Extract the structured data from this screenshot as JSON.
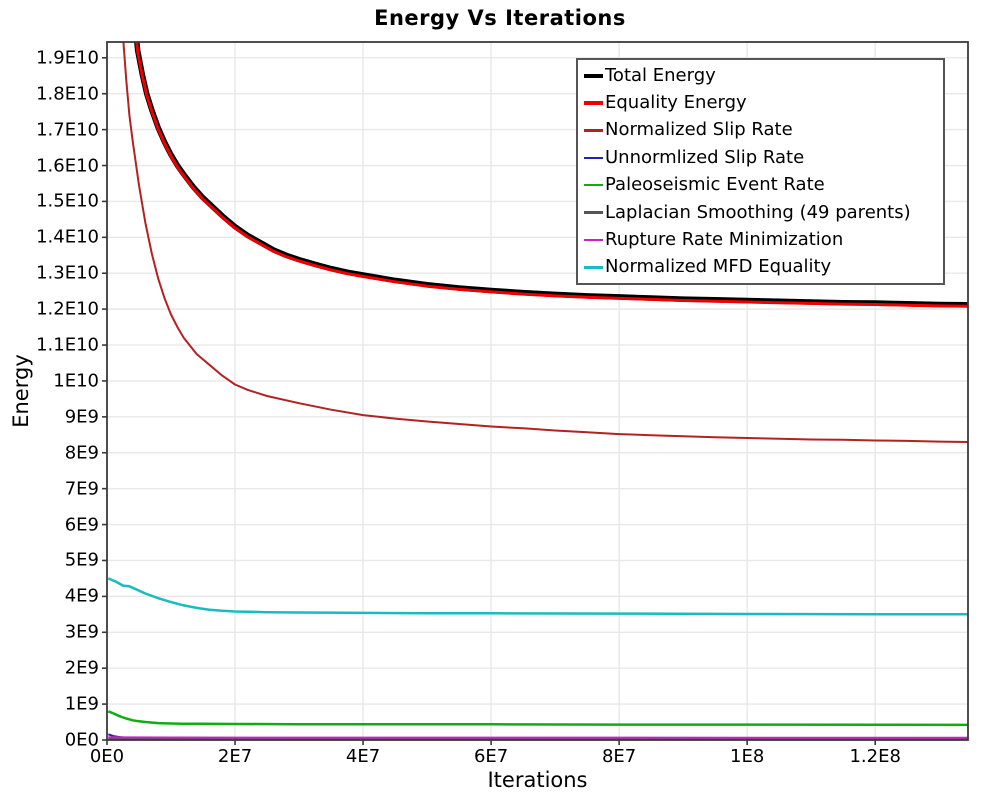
{
  "title": "Energy Vs Iterations",
  "colors": {
    "background": "#ffffff",
    "grid": "#e8e8e8",
    "plot_border": "#3a3a3a",
    "legend_border": "#555555",
    "text": "#000000"
  },
  "chart_data": {
    "type": "line",
    "title": "Energy Vs Iterations",
    "xlabel": "Iterations",
    "ylabel": "Energy",
    "xlim": [
      0,
      134500000
    ],
    "ylim": [
      0,
      19440000000
    ],
    "grid": true,
    "legend_position": "upper-right-inside",
    "x_unit": 10000000,
    "y_unit": 1000000000,
    "x_ticks": [
      {
        "value": 0,
        "label": "0E0"
      },
      {
        "value": 20000000,
        "label": "2E7"
      },
      {
        "value": 40000000,
        "label": "4E7"
      },
      {
        "value": 60000000,
        "label": "6E7"
      },
      {
        "value": 80000000,
        "label": "8E7"
      },
      {
        "value": 100000000,
        "label": "1E8"
      },
      {
        "value": 120000000,
        "label": "1.2E8"
      }
    ],
    "y_ticks": [
      {
        "value": 0,
        "label": "0E0"
      },
      {
        "value": 1000000000,
        "label": "1E9"
      },
      {
        "value": 2000000000,
        "label": "2E9"
      },
      {
        "value": 3000000000,
        "label": "3E9"
      },
      {
        "value": 4000000000,
        "label": "4E9"
      },
      {
        "value": 5000000000,
        "label": "5E9"
      },
      {
        "value": 6000000000,
        "label": "6E9"
      },
      {
        "value": 7000000000,
        "label": "7E9"
      },
      {
        "value": 8000000000,
        "label": "8E9"
      },
      {
        "value": 9000000000,
        "label": "9E9"
      },
      {
        "value": 10000000000,
        "label": "1E10"
      },
      {
        "value": 11000000000,
        "label": "1.1E10"
      },
      {
        "value": 12000000000,
        "label": "1.2E10"
      },
      {
        "value": 13000000000,
        "label": "1.3E10"
      },
      {
        "value": 14000000000,
        "label": "1.4E10"
      },
      {
        "value": 15000000000,
        "label": "1.5E10"
      },
      {
        "value": 16000000000,
        "label": "1.6E10"
      },
      {
        "value": 17000000000,
        "label": "1.7E10"
      },
      {
        "value": 18000000000,
        "label": "1.8E10"
      },
      {
        "value": 19000000000,
        "label": "1.9E10"
      }
    ],
    "series": [
      {
        "name": "Total Energy",
        "color": "#000000",
        "width": 5.5,
        "legend_thick": true,
        "points": [
          [
            0.4,
            21.8
          ],
          [
            0.44,
            19.9
          ],
          [
            0.48,
            19.2
          ],
          [
            0.55,
            18.55
          ],
          [
            0.62,
            18.0
          ],
          [
            0.7,
            17.55
          ],
          [
            0.8,
            17.05
          ],
          [
            0.9,
            16.65
          ],
          [
            1.0,
            16.3
          ],
          [
            1.1,
            16.0
          ],
          [
            1.2,
            15.75
          ],
          [
            1.35,
            15.4
          ],
          [
            1.5,
            15.1
          ],
          [
            1.65,
            14.85
          ],
          [
            1.8,
            14.6
          ],
          [
            2.0,
            14.3
          ],
          [
            2.2,
            14.05
          ],
          [
            2.4,
            13.85
          ],
          [
            2.6,
            13.65
          ],
          [
            2.8,
            13.5
          ],
          [
            3.0,
            13.38
          ],
          [
            3.25,
            13.25
          ],
          [
            3.5,
            13.13
          ],
          [
            3.75,
            13.03
          ],
          [
            4.0,
            12.95
          ],
          [
            4.5,
            12.8
          ],
          [
            5.0,
            12.68
          ],
          [
            5.5,
            12.59
          ],
          [
            6.0,
            12.52
          ],
          [
            6.5,
            12.46
          ],
          [
            7.0,
            12.41
          ],
          [
            7.5,
            12.37
          ],
          [
            8.0,
            12.34
          ],
          [
            8.5,
            12.31
          ],
          [
            9.0,
            12.28
          ],
          [
            9.5,
            12.26
          ],
          [
            10.0,
            12.24
          ],
          [
            10.5,
            12.22
          ],
          [
            11.0,
            12.2
          ],
          [
            11.5,
            12.18
          ],
          [
            12.0,
            12.17
          ],
          [
            12.5,
            12.15
          ],
          [
            13.0,
            12.13
          ],
          [
            13.45,
            12.12
          ]
        ]
      },
      {
        "name": "Equality Energy",
        "color": "#ee0000",
        "width": 3,
        "legend_thick": true,
        "points": [
          [
            0.4,
            21.76
          ],
          [
            0.44,
            19.86
          ],
          [
            0.48,
            19.16
          ],
          [
            0.55,
            18.51
          ],
          [
            0.62,
            17.96
          ],
          [
            0.7,
            17.51
          ],
          [
            0.8,
            17.01
          ],
          [
            0.9,
            16.61
          ],
          [
            1.0,
            16.26
          ],
          [
            1.1,
            15.96
          ],
          [
            1.2,
            15.71
          ],
          [
            1.35,
            15.36
          ],
          [
            1.5,
            15.06
          ],
          [
            1.65,
            14.81
          ],
          [
            1.8,
            14.56
          ],
          [
            2.0,
            14.26
          ],
          [
            2.2,
            14.01
          ],
          [
            2.4,
            13.81
          ],
          [
            2.6,
            13.61
          ],
          [
            2.8,
            13.46
          ],
          [
            3.0,
            13.34
          ],
          [
            3.25,
            13.21
          ],
          [
            3.5,
            13.09
          ],
          [
            3.75,
            12.99
          ],
          [
            4.0,
            12.91
          ],
          [
            4.5,
            12.76
          ],
          [
            5.0,
            12.64
          ],
          [
            5.5,
            12.55
          ],
          [
            6.0,
            12.48
          ],
          [
            6.5,
            12.42
          ],
          [
            7.0,
            12.37
          ],
          [
            7.5,
            12.33
          ],
          [
            8.0,
            12.3
          ],
          [
            8.5,
            12.27
          ],
          [
            9.0,
            12.24
          ],
          [
            9.5,
            12.22
          ],
          [
            10.0,
            12.2
          ],
          [
            10.5,
            12.18
          ],
          [
            11.0,
            12.16
          ],
          [
            11.5,
            12.14
          ],
          [
            12.0,
            12.13
          ],
          [
            12.5,
            12.11
          ],
          [
            13.0,
            12.09
          ],
          [
            13.45,
            12.08
          ]
        ]
      },
      {
        "name": "Normalized Slip Rate",
        "color": "#b22222",
        "width": 2,
        "legend_thick": false,
        "points": [
          [
            0.2,
            21.5
          ],
          [
            0.25,
            19.6
          ],
          [
            0.3,
            18.4
          ],
          [
            0.35,
            17.4
          ],
          [
            0.4,
            16.7
          ],
          [
            0.5,
            15.45
          ],
          [
            0.6,
            14.4
          ],
          [
            0.7,
            13.55
          ],
          [
            0.8,
            12.85
          ],
          [
            0.9,
            12.3
          ],
          [
            1.0,
            11.85
          ],
          [
            1.1,
            11.5
          ],
          [
            1.2,
            11.2
          ],
          [
            1.4,
            10.75
          ],
          [
            1.6,
            10.45
          ],
          [
            1.8,
            10.15
          ],
          [
            2.0,
            9.9
          ],
          [
            2.2,
            9.75
          ],
          [
            2.5,
            9.58
          ],
          [
            3.0,
            9.38
          ],
          [
            3.5,
            9.2
          ],
          [
            4.0,
            9.05
          ],
          [
            4.5,
            8.95
          ],
          [
            5.0,
            8.87
          ],
          [
            5.5,
            8.8
          ],
          [
            6.0,
            8.73
          ],
          [
            6.5,
            8.68
          ],
          [
            7.0,
            8.62
          ],
          [
            7.5,
            8.57
          ],
          [
            8.0,
            8.52
          ],
          [
            8.5,
            8.49
          ],
          [
            9.0,
            8.46
          ],
          [
            9.5,
            8.43
          ],
          [
            10.0,
            8.41
          ],
          [
            10.5,
            8.39
          ],
          [
            11.0,
            8.37
          ],
          [
            11.5,
            8.36
          ],
          [
            12.0,
            8.34
          ],
          [
            12.5,
            8.33
          ],
          [
            13.0,
            8.31
          ],
          [
            13.45,
            8.3
          ]
        ]
      },
      {
        "name": "Unnormlized Slip Rate",
        "color": "#2121b8",
        "width": 2,
        "legend_thick": false,
        "points": [
          [
            0.02,
            0.16
          ],
          [
            0.1,
            0.11
          ],
          [
            0.2,
            0.08
          ],
          [
            0.3,
            0.065
          ],
          [
            0.5,
            0.055
          ],
          [
            0.8,
            0.05
          ],
          [
            1.5,
            0.048
          ],
          [
            3.0,
            0.045
          ],
          [
            6.0,
            0.043
          ],
          [
            10.0,
            0.042
          ],
          [
            13.45,
            0.04
          ]
        ]
      },
      {
        "name": "Paleoseismic Event Rate",
        "color": "#10ad10",
        "width": 2.5,
        "legend_thick": false,
        "points": [
          [
            0.02,
            0.8
          ],
          [
            0.1,
            0.74
          ],
          [
            0.2,
            0.66
          ],
          [
            0.3,
            0.6
          ],
          [
            0.4,
            0.55
          ],
          [
            0.5,
            0.52
          ],
          [
            0.6,
            0.5
          ],
          [
            0.8,
            0.47
          ],
          [
            1.0,
            0.46
          ],
          [
            1.2,
            0.455
          ],
          [
            1.5,
            0.45
          ],
          [
            2.0,
            0.445
          ],
          [
            3.0,
            0.44
          ],
          [
            4.0,
            0.44
          ],
          [
            5.0,
            0.438
          ],
          [
            6.0,
            0.436
          ],
          [
            8.0,
            0.43
          ],
          [
            10.0,
            0.428
          ],
          [
            12.0,
            0.425
          ],
          [
            13.45,
            0.42
          ]
        ]
      },
      {
        "name": "Laplacian Smoothing (49 parents)",
        "color": "#555555",
        "width": 2,
        "legend_thick": false,
        "points": [
          [
            0.02,
            0.03
          ],
          [
            2.0,
            0.028
          ],
          [
            6.0,
            0.027
          ],
          [
            13.45,
            0.026
          ]
        ]
      },
      {
        "name": "Rupture Rate Minimization",
        "color": "#c724c7",
        "width": 2,
        "legend_thick": false,
        "points": [
          [
            0.02,
            0.075
          ],
          [
            1.0,
            0.07
          ],
          [
            3.0,
            0.068
          ],
          [
            6.0,
            0.066
          ],
          [
            10.0,
            0.064
          ],
          [
            13.45,
            0.062
          ]
        ]
      },
      {
        "name": "Normalized MFD Equality",
        "color": "#19bcbe",
        "width": 2.5,
        "legend_thick": false,
        "points": [
          [
            0.02,
            4.5
          ],
          [
            0.15,
            4.4
          ],
          [
            0.25,
            4.3
          ],
          [
            0.35,
            4.28
          ],
          [
            0.45,
            4.2
          ],
          [
            0.6,
            4.08
          ],
          [
            0.8,
            3.95
          ],
          [
            1.0,
            3.84
          ],
          [
            1.2,
            3.75
          ],
          [
            1.4,
            3.68
          ],
          [
            1.6,
            3.63
          ],
          [
            1.8,
            3.6
          ],
          [
            2.0,
            3.58
          ],
          [
            2.5,
            3.56
          ],
          [
            3.0,
            3.55
          ],
          [
            4.0,
            3.54
          ],
          [
            5.0,
            3.53
          ],
          [
            6.0,
            3.53
          ],
          [
            8.0,
            3.52
          ],
          [
            10.0,
            3.51
          ],
          [
            12.0,
            3.5
          ],
          [
            13.45,
            3.5
          ]
        ]
      }
    ]
  }
}
